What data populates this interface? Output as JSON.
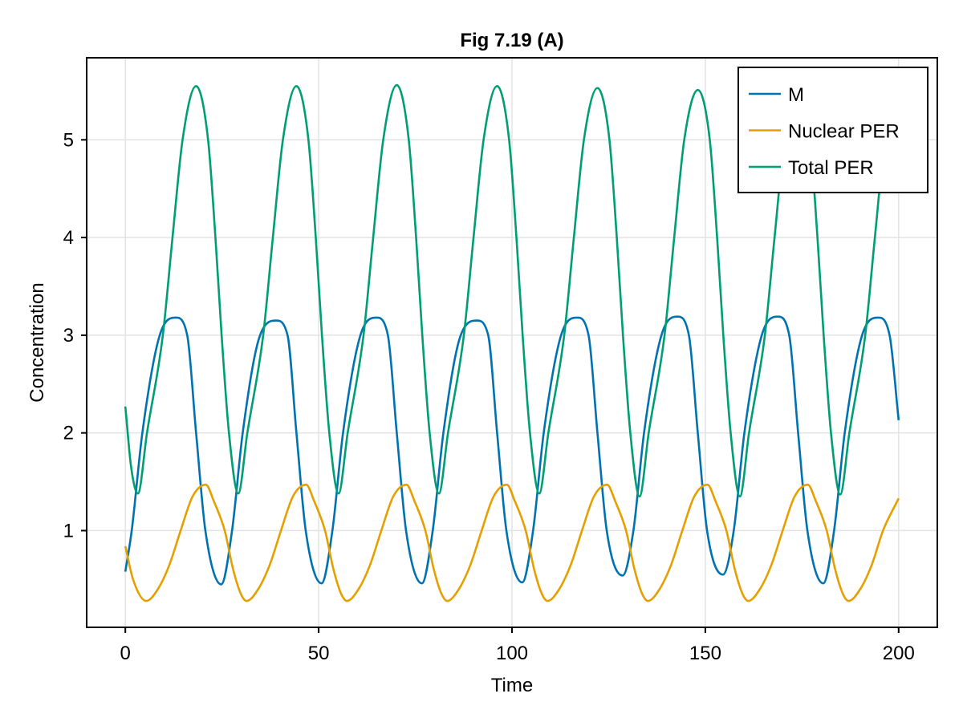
{
  "chart_data": {
    "type": "line",
    "title": "Fig 7.19 (A)",
    "xlabel": "Time",
    "ylabel": "Concentration",
    "xlim": [
      -10,
      210
    ],
    "ylim": [
      0.01,
      5.84
    ],
    "xticks": [
      0,
      50,
      100,
      150,
      200
    ],
    "yticks": [
      1,
      2,
      3,
      4,
      5
    ],
    "grid": true,
    "legend_position": "top-right",
    "series": [
      {
        "name": "M",
        "color": "#0072b2",
        "points": [
          [
            0,
            0.58
          ],
          [
            1.65,
            1
          ],
          [
            4.4,
            2
          ],
          [
            8.9,
            3
          ],
          [
            13.1,
            3.18
          ],
          [
            16,
            3
          ],
          [
            18.3,
            2
          ],
          [
            20.7,
            1
          ],
          [
            24.8,
            0.45
          ],
          [
            27.6,
            1
          ],
          [
            30.35,
            2
          ],
          [
            34.85,
            3
          ],
          [
            39.05,
            3.15
          ],
          [
            41.95,
            3
          ],
          [
            44.25,
            2
          ],
          [
            46.65,
            1
          ],
          [
            50.75,
            0.46
          ],
          [
            53.55,
            1
          ],
          [
            56.3,
            2
          ],
          [
            60.8,
            3
          ],
          [
            65,
            3.18
          ],
          [
            67.9,
            3
          ],
          [
            70.2,
            2
          ],
          [
            72.6,
            1
          ],
          [
            76.7,
            0.46
          ],
          [
            79.5,
            1
          ],
          [
            82.25,
            2
          ],
          [
            86.75,
            3
          ],
          [
            90.95,
            3.15
          ],
          [
            93.85,
            3
          ],
          [
            96.15,
            2
          ],
          [
            98.55,
            1
          ],
          [
            102.65,
            0.47
          ],
          [
            105.45,
            1
          ],
          [
            108.2,
            2
          ],
          [
            112.7,
            3
          ],
          [
            116.9,
            3.18
          ],
          [
            119.8,
            3
          ],
          [
            122.1,
            2
          ],
          [
            124.5,
            1
          ],
          [
            128.6,
            0.54
          ],
          [
            131.4,
            1
          ],
          [
            134.15,
            2
          ],
          [
            138.65,
            3
          ],
          [
            142.85,
            3.19
          ],
          [
            145.75,
            3
          ],
          [
            148.05,
            2
          ],
          [
            150.45,
            1
          ],
          [
            154.55,
            0.55
          ],
          [
            157.35,
            1
          ],
          [
            160.1,
            2
          ],
          [
            164.6,
            3
          ],
          [
            168.8,
            3.19
          ],
          [
            171.7,
            3
          ],
          [
            174,
            2
          ],
          [
            176.4,
            1
          ],
          [
            180.5,
            0.46
          ],
          [
            183.3,
            1
          ],
          [
            186.05,
            2
          ],
          [
            190.55,
            3
          ],
          [
            194.75,
            3.18
          ],
          [
            197.65,
            3
          ],
          [
            200,
            2.13
          ]
        ]
      },
      {
        "name": "Nuclear PER",
        "color": "#e69f00",
        "points": [
          [
            0,
            0.84
          ],
          [
            2,
            0.5
          ],
          [
            5.4,
            0.28
          ],
          [
            8.4,
            0.4
          ],
          [
            11.4,
            0.65
          ],
          [
            14.3,
            1
          ],
          [
            17.4,
            1.35
          ],
          [
            20.8,
            1.47
          ],
          [
            22.9,
            1.3
          ],
          [
            25.7,
            1
          ],
          [
            27.9,
            0.6
          ],
          [
            29.9,
            0.35
          ],
          [
            31.35,
            0.28
          ],
          [
            34.35,
            0.4
          ],
          [
            37.35,
            0.65
          ],
          [
            40.25,
            1
          ],
          [
            43.35,
            1.35
          ],
          [
            46.75,
            1.47
          ],
          [
            48.85,
            1.3
          ],
          [
            51.65,
            1
          ],
          [
            53.85,
            0.6
          ],
          [
            55.85,
            0.35
          ],
          [
            57.3,
            0.28
          ],
          [
            60.3,
            0.4
          ],
          [
            63.3,
            0.65
          ],
          [
            66.2,
            1
          ],
          [
            69.3,
            1.35
          ],
          [
            72.7,
            1.47
          ],
          [
            74.8,
            1.3
          ],
          [
            77.6,
            1
          ],
          [
            79.8,
            0.6
          ],
          [
            81.8,
            0.35
          ],
          [
            83.25,
            0.28
          ],
          [
            86.25,
            0.4
          ],
          [
            89.25,
            0.65
          ],
          [
            92.15,
            1
          ],
          [
            95.25,
            1.35
          ],
          [
            98.65,
            1.47
          ],
          [
            100.75,
            1.3
          ],
          [
            103.55,
            1
          ],
          [
            105.75,
            0.6
          ],
          [
            107.75,
            0.35
          ],
          [
            109.2,
            0.28
          ],
          [
            112.2,
            0.4
          ],
          [
            115.2,
            0.65
          ],
          [
            118.1,
            1
          ],
          [
            121.2,
            1.35
          ],
          [
            124.6,
            1.47
          ],
          [
            126.7,
            1.3
          ],
          [
            129.5,
            1
          ],
          [
            131.7,
            0.6
          ],
          [
            133.7,
            0.35
          ],
          [
            135.15,
            0.28
          ],
          [
            138.15,
            0.4
          ],
          [
            141.15,
            0.65
          ],
          [
            144.05,
            1
          ],
          [
            147.15,
            1.35
          ],
          [
            150.55,
            1.47
          ],
          [
            152.65,
            1.3
          ],
          [
            155.45,
            1
          ],
          [
            157.65,
            0.6
          ],
          [
            159.65,
            0.35
          ],
          [
            161.1,
            0.28
          ],
          [
            164.1,
            0.4
          ],
          [
            167.1,
            0.65
          ],
          [
            170,
            1
          ],
          [
            173.1,
            1.35
          ],
          [
            176.5,
            1.47
          ],
          [
            178.6,
            1.3
          ],
          [
            181.4,
            1
          ],
          [
            183.6,
            0.6
          ],
          [
            185.6,
            0.35
          ],
          [
            187.05,
            0.28
          ],
          [
            190.05,
            0.4
          ],
          [
            193.05,
            0.65
          ],
          [
            195.95,
            1
          ],
          [
            200,
            1.33
          ]
        ]
      },
      {
        "name": "Total PER",
        "color": "#009e73",
        "points": [
          [
            0,
            2.27
          ],
          [
            1.5,
            1.65
          ],
          [
            3.25,
            1.38
          ],
          [
            5.6,
            2
          ],
          [
            9.7,
            3
          ],
          [
            12.2,
            4
          ],
          [
            14.8,
            5
          ],
          [
            18.3,
            5.55
          ],
          [
            21.4,
            5
          ],
          [
            23.3,
            4
          ],
          [
            24.9,
            3
          ],
          [
            26.8,
            2
          ],
          [
            29.2,
            1.38
          ],
          [
            31.55,
            2
          ],
          [
            35.65,
            3
          ],
          [
            38.15,
            4
          ],
          [
            40.75,
            5
          ],
          [
            44.25,
            5.55
          ],
          [
            47.35,
            5
          ],
          [
            49.25,
            4
          ],
          [
            50.85,
            3
          ],
          [
            52.75,
            2
          ],
          [
            55.15,
            1.38
          ],
          [
            57.5,
            2
          ],
          [
            61.6,
            3
          ],
          [
            64.1,
            4
          ],
          [
            66.7,
            5
          ],
          [
            70.2,
            5.56
          ],
          [
            73.3,
            5
          ],
          [
            75.2,
            4
          ],
          [
            76.8,
            3
          ],
          [
            78.7,
            2
          ],
          [
            81.1,
            1.38
          ],
          [
            83.45,
            2
          ],
          [
            87.55,
            3
          ],
          [
            90.05,
            4
          ],
          [
            92.65,
            5
          ],
          [
            96.15,
            5.55
          ],
          [
            99.25,
            5
          ],
          [
            101.15,
            4
          ],
          [
            102.75,
            3
          ],
          [
            104.65,
            2
          ],
          [
            107.05,
            1.38
          ],
          [
            109.4,
            2
          ],
          [
            113.5,
            3
          ],
          [
            116,
            4
          ],
          [
            118.6,
            5
          ],
          [
            122.1,
            5.53
          ],
          [
            125.2,
            5
          ],
          [
            127.1,
            4
          ],
          [
            128.7,
            3
          ],
          [
            130.6,
            2
          ],
          [
            133,
            1.35
          ],
          [
            135.35,
            2
          ],
          [
            139.45,
            3
          ],
          [
            141.95,
            4
          ],
          [
            144.55,
            5
          ],
          [
            148.05,
            5.51
          ],
          [
            151.15,
            5
          ],
          [
            153.05,
            4
          ],
          [
            154.65,
            3
          ],
          [
            156.55,
            2
          ],
          [
            158.95,
            1.35
          ],
          [
            161.3,
            2
          ],
          [
            165.4,
            3
          ],
          [
            167.9,
            4
          ],
          [
            170.5,
            5
          ],
          [
            174,
            5.5
          ],
          [
            177.1,
            5
          ],
          [
            179,
            4
          ],
          [
            180.6,
            3
          ],
          [
            182.5,
            2
          ],
          [
            184.9,
            1.37
          ],
          [
            187.25,
            2
          ],
          [
            191.35,
            3
          ],
          [
            193.85,
            4
          ],
          [
            196.45,
            5
          ],
          [
            200,
            5.52
          ]
        ]
      }
    ]
  }
}
